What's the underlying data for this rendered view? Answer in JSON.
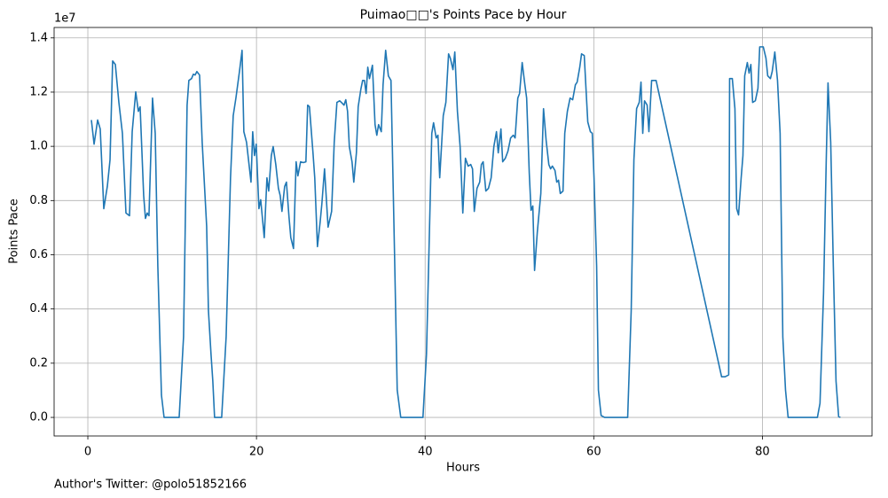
{
  "chart_data": {
    "type": "line",
    "title": "Puimao□□'s Points Pace by Hour",
    "x_label": "Hours",
    "y_label": "Points Pace",
    "y_offset_label": "1e7",
    "footnote": "Author's Twitter: @polo51852166",
    "xlim": [
      -4,
      93
    ],
    "xticks": [
      0,
      20,
      40,
      60,
      80
    ],
    "ylim": [
      -0.0685,
      1.4385
    ],
    "yticks": [
      {
        "value": 0,
        "label": "0.0"
      },
      0.2,
      0.4,
      0.6,
      0.8,
      {
        "value": 1,
        "label": "1.0"
      },
      1.2,
      1.4
    ],
    "grid": true,
    "x": [
      0.42,
      0.74,
      1.16,
      1.47,
      1.89,
      2.31,
      2.63,
      2.94,
      3.26,
      3.68,
      4.1,
      4.52,
      4.94,
      5.26,
      5.68,
      5.99,
      6.2,
      6.62,
      6.83,
      7.04,
      7.25,
      7.67,
      7.99,
      8.3,
      8.73,
      9.04,
      10.83,
      11.35,
      11.77,
      11.98,
      12.3,
      12.51,
      12.72,
      12.93,
      13.25,
      13.56,
      14.09,
      14.3,
      14.61,
      14.82,
      15.03,
      15.87,
      16.4,
      16.92,
      17.24,
      17.56,
      17.98,
      18.29,
      18.5,
      18.82,
      19.35,
      19.55,
      19.76,
      19.97,
      20.29,
      20.5,
      20.92,
      21.24,
      21.45,
      21.76,
      21.98,
      22.29,
      22.6,
      22.81,
      23.02,
      23.34,
      23.55,
      23.86,
      24.07,
      24.39,
      24.7,
      24.91,
      25.23,
      25.55,
      25.86,
      26.07,
      26.28,
      26.7,
      26.91,
      27.23,
      27.55,
      27.75,
      28.07,
      28.49,
      28.91,
      29.22,
      29.54,
      29.86,
      30.07,
      30.38,
      30.59,
      30.8,
      31.01,
      31.33,
      31.54,
      31.85,
      32.06,
      32.38,
      32.59,
      32.8,
      33.0,
      33.2,
      33.4,
      33.75,
      34.06,
      34.27,
      34.48,
      34.8,
      35.01,
      35.32,
      35.64,
      35.95,
      36.37,
      36.69,
      37.11,
      39.74,
      40.16,
      40.79,
      41.0,
      41.31,
      41.52,
      41.73,
      42.15,
      42.46,
      42.78,
      42.99,
      43.3,
      43.52,
      43.83,
      44.15,
      44.47,
      44.78,
      45.1,
      45.41,
      45.62,
      45.83,
      46.15,
      46.47,
      46.67,
      46.88,
      47.2,
      47.51,
      47.83,
      48.15,
      48.46,
      48.67,
      48.99,
      49.2,
      49.51,
      49.82,
      50.14,
      50.46,
      50.67,
      50.99,
      51.2,
      51.51,
      51.83,
      52.04,
      52.35,
      52.56,
      52.77,
      52.98,
      53.3,
      53.72,
      54.04,
      54.35,
      54.67,
      54.88,
      55.09,
      55.4,
      55.61,
      55.82,
      56.03,
      56.35,
      56.56,
      56.87,
      57.19,
      57.5,
      57.82,
      58.03,
      58.34,
      58.55,
      58.87,
      59.08,
      59.29,
      59.6,
      59.82,
      60.03,
      60.34,
      60.55,
      60.87,
      61.29,
      64.02,
      64.44,
      64.76,
      65.08,
      65.39,
      65.6,
      65.81,
      66.02,
      66.33,
      66.54,
      66.86,
      67.39,
      75.16,
      75.58,
      76.0,
      76.11,
      76.43,
      76.74,
      76.95,
      77.17,
      77.48,
      77.69,
      77.9,
      78.21,
      78.42,
      78.63,
      78.84,
      79.16,
      79.47,
      79.68,
      80.1,
      80.42,
      80.63,
      80.95,
      81.16,
      81.47,
      81.79,
      82.1,
      82.42,
      82.74,
      83.05,
      86.52,
      86.83,
      87.25,
      87.57,
      87.78,
      88.1,
      88.41,
      88.73,
      89.04,
      89.25
    ],
    "series": [
      {
        "name": "Points Pace",
        "color": "#1f77b4",
        "values": [
          1.097,
          1.008,
          1.097,
          1.064,
          0.77,
          0.852,
          0.95,
          1.315,
          1.302,
          1.162,
          1.048,
          0.754,
          0.744,
          1.054,
          1.201,
          1.129,
          1.146,
          0.819,
          0.734,
          0.754,
          0.744,
          1.178,
          1.048,
          0.558,
          0.082,
          0,
          0,
          0.297,
          1.152,
          1.243,
          1.25,
          1.266,
          1.263,
          1.276,
          1.263,
          1.015,
          0.705,
          0.395,
          0.232,
          0.134,
          0,
          0,
          0.297,
          0.884,
          1.113,
          1.178,
          1.276,
          1.354,
          1.054,
          1.015,
          0.868,
          1.054,
          0.966,
          1.008,
          0.77,
          0.803,
          0.663,
          0.884,
          0.835,
          0.966,
          0.999,
          0.933,
          0.845,
          0.819,
          0.76,
          0.852,
          0.868,
          0.738,
          0.663,
          0.623,
          0.943,
          0.891,
          0.943,
          0.94,
          0.943,
          1.152,
          1.146,
          0.976,
          0.884,
          0.63,
          0.721,
          0.787,
          0.917,
          0.702,
          0.76,
          1.015,
          1.162,
          1.168,
          1.162,
          1.152,
          1.172,
          1.129,
          0.999,
          0.943,
          0.868,
          0.976,
          1.146,
          1.211,
          1.243,
          1.243,
          1.195,
          1.292,
          1.25,
          1.299,
          1.08,
          1.041,
          1.08,
          1.054,
          1.227,
          1.354,
          1.26,
          1.243,
          0.607,
          0.101,
          0,
          0,
          0.232,
          1.048,
          1.087,
          1.031,
          1.041,
          0.884,
          1.113,
          1.162,
          1.341,
          1.325,
          1.283,
          1.348,
          1.129,
          0.999,
          0.754,
          0.956,
          0.927,
          0.933,
          0.917,
          0.76,
          0.845,
          0.868,
          0.933,
          0.943,
          0.835,
          0.845,
          0.884,
          0.999,
          1.054,
          0.976,
          1.064,
          0.943,
          0.956,
          0.982,
          1.031,
          1.041,
          1.031,
          1.178,
          1.195,
          1.309,
          1.227,
          1.178,
          0.901,
          0.764,
          0.78,
          0.542,
          0.682,
          0.826,
          1.139,
          1.022,
          0.933,
          0.917,
          0.927,
          0.911,
          0.868,
          0.875,
          0.826,
          0.835,
          1.048,
          1.129,
          1.178,
          1.172,
          1.227,
          1.237,
          1.292,
          1.341,
          1.335,
          1.211,
          1.09,
          1.054,
          1.048,
          0.884,
          0.558,
          0.101,
          0.007,
          0,
          0,
          0.395,
          0.95,
          1.139,
          1.162,
          1.237,
          1.048,
          1.168,
          1.152,
          1.054,
          1.243,
          1.243,
          0.15,
          0.15,
          0.157,
          1.25,
          1.25,
          1.139,
          0.77,
          0.747,
          0.884,
          0.966,
          1.26,
          1.309,
          1.27,
          1.302,
          1.162,
          1.168,
          1.214,
          1.367,
          1.367,
          1.325,
          1.26,
          1.25,
          1.276,
          1.348,
          1.243,
          1.048,
          0.297,
          0.101,
          0,
          0,
          0.052,
          0.46,
          0.95,
          1.234,
          1.015,
          0.558,
          0.134,
          0.003,
          0
        ]
      }
    ]
  }
}
